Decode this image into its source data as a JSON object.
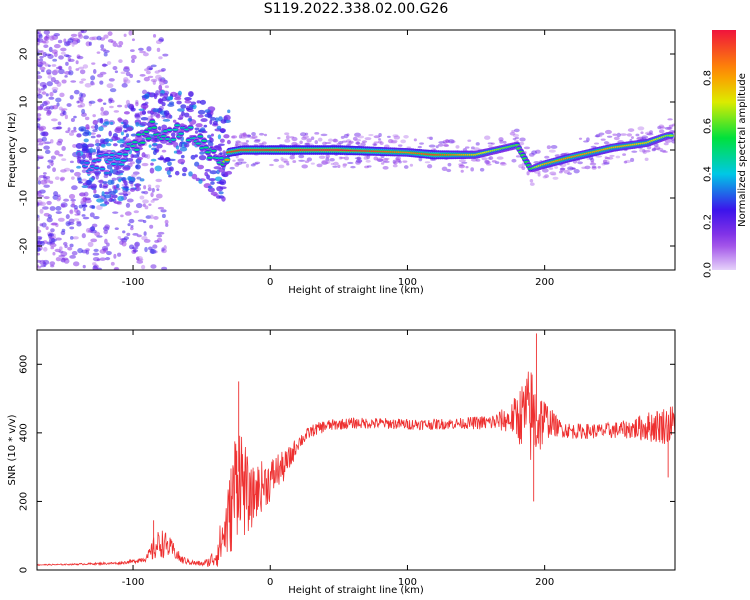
{
  "title": "S119.2022.338.02.00.G26",
  "chart_data": [
    {
      "type": "heatmap",
      "xlabel": "Height of straight line (km)",
      "ylabel": "Frequency (Hz)",
      "xlim": [
        -170,
        295
      ],
      "ylim": [
        -25,
        25
      ],
      "xticks": [
        -100,
        0,
        100,
        200
      ],
      "yticks": [
        -20,
        -10,
        0,
        10,
        20
      ],
      "colorbar": {
        "label": "Normalized spectral amplitude",
        "range": [
          0.0,
          1.0
        ],
        "ticks": [
          0.0,
          0.2,
          0.4,
          0.6,
          0.8
        ]
      },
      "ridge_x": [
        -130,
        -110,
        -95,
        -85,
        -75,
        -65,
        -55,
        -45,
        -35,
        -30,
        -20,
        0,
        50,
        100,
        120,
        150,
        165,
        180,
        190,
        200,
        220,
        250,
        275,
        290
      ],
      "ridge_freq": [
        -3,
        -2,
        2,
        5,
        3,
        4,
        3,
        0,
        -2,
        -0.5,
        0,
        0,
        0,
        -0.5,
        -1,
        -1,
        0,
        1,
        -4,
        -3,
        -1.5,
        0.5,
        1.5,
        3
      ],
      "ridge_amplitude": [
        0.3,
        0.35,
        0.45,
        0.45,
        0.4,
        0.4,
        0.4,
        0.45,
        0.4,
        0.9,
        0.92,
        0.95,
        0.98,
        0.8,
        0.9,
        0.7,
        0.6,
        0.55,
        0.5,
        0.75,
        0.8,
        0.75,
        0.7,
        0.6
      ]
    },
    {
      "type": "line",
      "xlabel": "Height of straight line (km)",
      "ylabel": "SNR (10 * v/v)",
      "xlim": [
        -170,
        295
      ],
      "ylim": [
        0,
        700
      ],
      "xticks": [
        -100,
        0,
        100,
        200
      ],
      "yticks": [
        0,
        200,
        400,
        600
      ],
      "color": "#ee3030",
      "series": [
        {
          "x": [
            -170,
            -150,
            -130,
            -110,
            -100,
            -90,
            -85,
            -80,
            -75,
            -70,
            -65,
            -60,
            -55,
            -50,
            -45,
            -40,
            -35,
            -30,
            -25,
            -22,
            -20,
            -18,
            -15,
            -10,
            -5,
            0,
            5,
            10,
            15,
            20,
            30,
            40,
            50,
            60,
            80,
            100,
            120,
            140,
            160,
            175,
            185,
            190,
            195,
            200,
            205,
            210,
            220,
            240,
            260,
            280,
            295
          ],
          "values": [
            15,
            16,
            18,
            20,
            25,
            35,
            60,
            80,
            70,
            55,
            30,
            25,
            20,
            18,
            22,
            40,
            90,
            150,
            260,
            300,
            250,
            230,
            200,
            230,
            250,
            260,
            290,
            300,
            330,
            370,
            405,
            420,
            425,
            428,
            428,
            425,
            425,
            428,
            430,
            440,
            455,
            450,
            430,
            440,
            430,
            415,
            405,
            405,
            410,
            420,
            425
          ],
          "band": [
            2,
            2,
            3,
            4,
            6,
            12,
            40,
            50,
            40,
            25,
            15,
            10,
            8,
            8,
            15,
            40,
            80,
            130,
            200,
            180,
            170,
            150,
            100,
            90,
            80,
            70,
            60,
            50,
            40,
            25,
            20,
            20,
            18,
            18,
            18,
            18,
            18,
            18,
            25,
            45,
            120,
            170,
            130,
            70,
            45,
            30,
            25,
            25,
            30,
            55,
            70
          ],
          "spikes": [
            {
              "x": -23,
              "y": 550
            },
            {
              "x": 194,
              "y": 690
            },
            {
              "x": 192,
              "y": 200
            },
            {
              "x": 290,
              "y": 270
            },
            {
              "x": -85,
              "y": 145
            }
          ]
        }
      ]
    }
  ]
}
